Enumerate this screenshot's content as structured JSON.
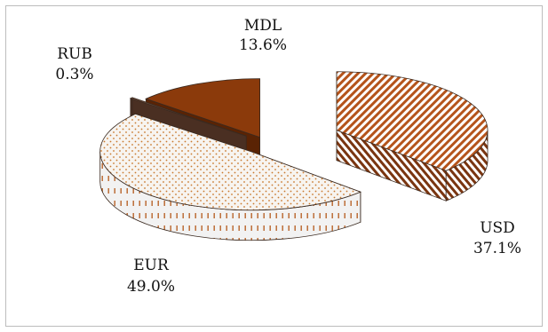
{
  "chart_data": {
    "type": "pie",
    "style": "3d-exploded",
    "title": "",
    "slices": [
      {
        "label": "USD",
        "value": 37.1,
        "display": "37.1%",
        "color": "#b5541b",
        "pattern": "diagonal-hatch"
      },
      {
        "label": "EUR",
        "value": 49.0,
        "display": "49.0%",
        "color": "#c9792e",
        "pattern": "dots"
      },
      {
        "label": "RUB",
        "value": 0.3,
        "display": "0.3%",
        "color": "#6b4a3a",
        "pattern": "solid"
      },
      {
        "label": "MDL",
        "value": 13.6,
        "display": "13.6%",
        "color": "#8b3a0b",
        "pattern": "solid"
      }
    ],
    "legend": "none",
    "data_labels": "outside"
  }
}
